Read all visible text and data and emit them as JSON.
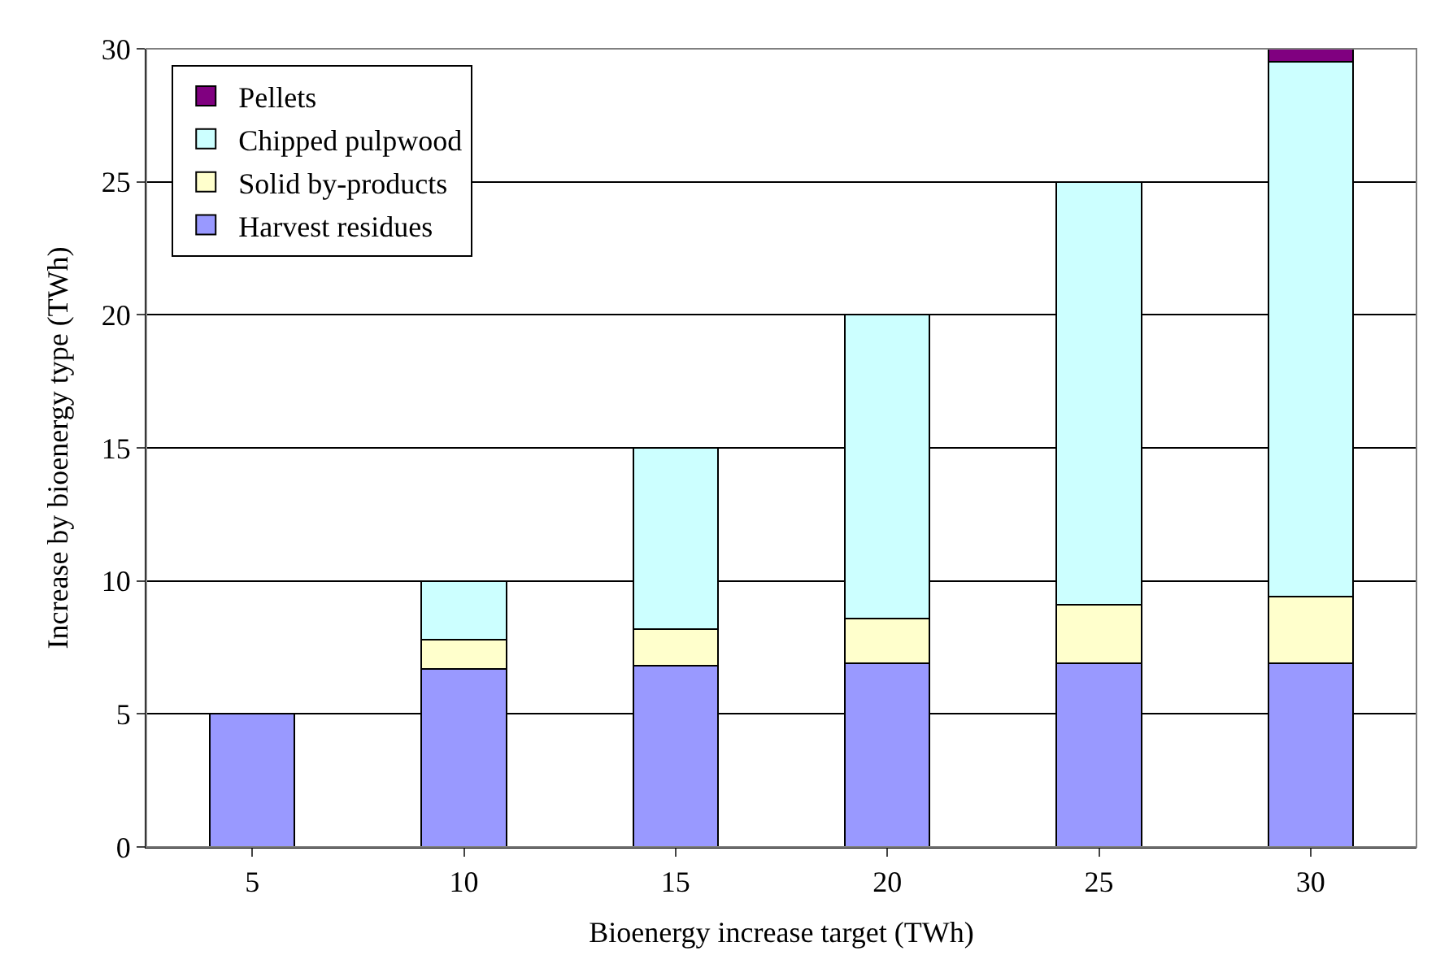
{
  "chart_data": {
    "type": "bar",
    "stacked": true,
    "xlabel": "Bioenergy increase target (TWh)",
    "ylabel": "Increase by bioenergy type (TWh)",
    "categories": [
      "5",
      "10",
      "15",
      "20",
      "25",
      "30"
    ],
    "series": [
      {
        "name": "Harvest residues",
        "color": "#9999ff",
        "values": [
          5,
          6.7,
          6.8,
          6.9,
          6.9,
          6.9
        ]
      },
      {
        "name": "Solid by-products",
        "color": "#ffffcc",
        "values": [
          null,
          1.1,
          1.4,
          1.7,
          2.2,
          2.5
        ]
      },
      {
        "name": "Chipped pulpwood",
        "color": "#ccffff",
        "values": [
          null,
          2.2,
          6.8,
          11.4,
          15.9,
          20.1
        ]
      },
      {
        "name": "Pellets",
        "color": "#800080",
        "values": [
          null,
          null,
          null,
          null,
          null,
          0.5
        ]
      }
    ],
    "ylim": [
      0,
      30
    ],
    "yticks": [
      0,
      5,
      10,
      15,
      20,
      25,
      30
    ],
    "grid": "y",
    "legend": "top left"
  }
}
